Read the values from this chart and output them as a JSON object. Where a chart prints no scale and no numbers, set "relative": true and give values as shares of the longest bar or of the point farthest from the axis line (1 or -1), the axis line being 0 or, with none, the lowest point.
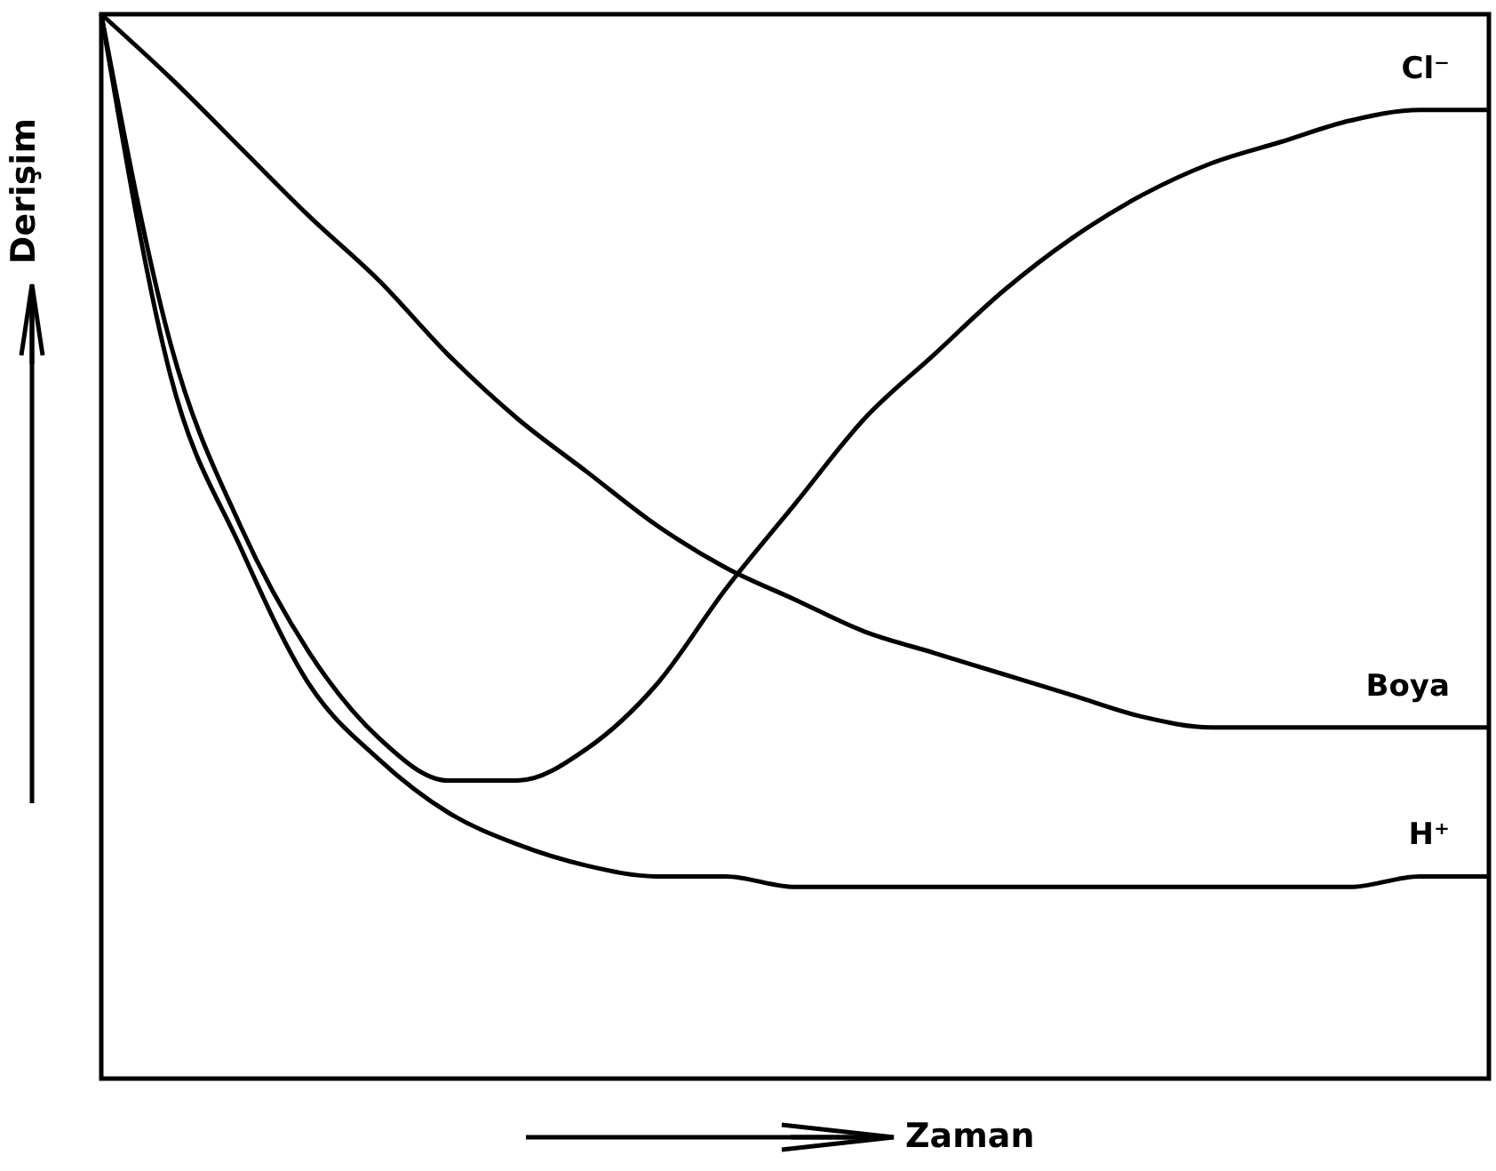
{
  "chart_data": {
    "type": "line",
    "relative": true,
    "xlabel": "Zaman",
    "ylabel": "Derişim",
    "grid": false,
    "categories": [
      null,
      null,
      null,
      null,
      null,
      null,
      null,
      null,
      null,
      null,
      null,
      null,
      null,
      null,
      null,
      null,
      null,
      null,
      null,
      null,
      null
    ],
    "series": [
      {
        "name": "Cl⁻",
        "color": "#000000",
        "values": [
          1.0,
          0.69,
          0.52,
          0.4,
          0.32,
          0.28,
          0.28,
          0.31,
          0.37,
          0.46,
          0.54,
          0.62,
          0.68,
          0.74,
          0.79,
          0.83,
          0.86,
          0.88,
          0.9,
          0.91,
          0.91
        ]
      },
      {
        "name": "Boya",
        "color": "#000000",
        "values": [
          1.0,
          0.94,
          0.875,
          0.81,
          0.75,
          0.68,
          0.62,
          0.57,
          0.52,
          0.48,
          0.45,
          0.42,
          0.4,
          0.38,
          0.36,
          0.34,
          0.33,
          0.33,
          0.33,
          0.33,
          0.33
        ]
      },
      {
        "name": "H⁺",
        "color": "#000000",
        "values": [
          1.0,
          0.66,
          0.5,
          0.37,
          0.3,
          0.25,
          0.22,
          0.2,
          0.19,
          0.19,
          0.18,
          0.18,
          0.18,
          0.18,
          0.18,
          0.18,
          0.18,
          0.18,
          0.18,
          0.19,
          0.19
        ]
      }
    ]
  }
}
